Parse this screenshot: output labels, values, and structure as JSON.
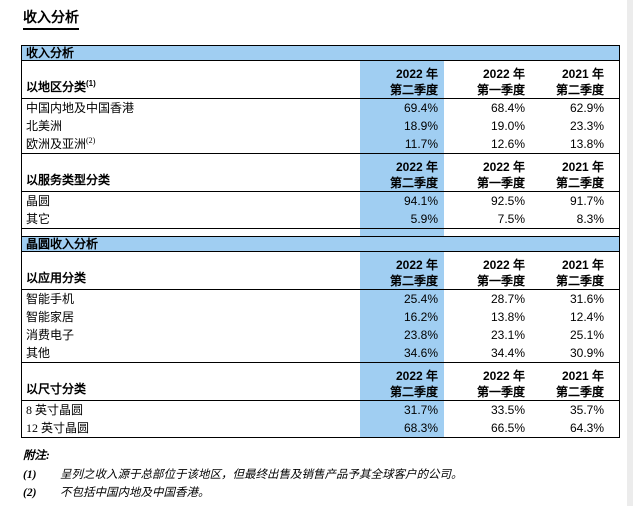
{
  "page_title": "收入分析",
  "colors": {
    "highlight_blue": "#a0cef2",
    "border_black": "#000000",
    "page_edge_gray": "#ececec"
  },
  "table": {
    "section_bars": {
      "revenue": "收入分析",
      "wafer": "晶圆收入分析"
    },
    "periods": [
      {
        "year": "2022 年",
        "quarter": "第二季度"
      },
      {
        "year": "2022 年",
        "quarter": "第一季度"
      },
      {
        "year": "2021 年",
        "quarter": "第二季度"
      }
    ],
    "groups": [
      {
        "label": "以地区分类",
        "sup": "(1)",
        "rows": [
          {
            "label": "中国内地及中国香港",
            "sup": "",
            "v1": "69.4%",
            "v2": "68.4%",
            "v3": "62.9%"
          },
          {
            "label": "北美洲",
            "sup": "",
            "v1": "18.9%",
            "v2": "19.0%",
            "v3": "23.3%"
          },
          {
            "label": "欧洲及亚洲",
            "sup": "(2)",
            "v1": "11.7%",
            "v2": "12.6%",
            "v3": "13.8%"
          }
        ]
      },
      {
        "label": "以服务类型分类",
        "sup": "",
        "rows": [
          {
            "label": "晶圆",
            "sup": "",
            "v1": "94.1%",
            "v2": "92.5%",
            "v3": "91.7%"
          },
          {
            "label": "其它",
            "sup": "",
            "v1": "5.9%",
            "v2": "7.5%",
            "v3": "8.3%"
          }
        ]
      },
      {
        "label": "以应用分类",
        "sup": "",
        "rows": [
          {
            "label": "智能手机",
            "sup": "",
            "v1": "25.4%",
            "v2": "28.7%",
            "v3": "31.6%"
          },
          {
            "label": "智能家居",
            "sup": "",
            "v1": "16.2%",
            "v2": "13.8%",
            "v3": "12.4%"
          },
          {
            "label": "消费电子",
            "sup": "",
            "v1": "23.8%",
            "v2": "23.1%",
            "v3": "25.1%"
          },
          {
            "label": "其他",
            "sup": "",
            "v1": "34.6%",
            "v2": "34.4%",
            "v3": "30.9%"
          }
        ]
      },
      {
        "label": "以尺寸分类",
        "sup": "",
        "rows": [
          {
            "label": "8 英寸晶圆",
            "sup": "",
            "v1": "31.7%",
            "v2": "33.5%",
            "v3": "35.7%"
          },
          {
            "label": "12 英寸晶圆",
            "sup": "",
            "v1": "68.3%",
            "v2": "66.5%",
            "v3": "64.3%"
          }
        ]
      }
    ]
  },
  "footnotes": {
    "title": "附注:",
    "items": [
      {
        "num": "(1)",
        "text": "呈列之收入源于总部位于该地区，但最终出售及销售产品予其全球客户的公司。"
      },
      {
        "num": "(2)",
        "text": "不包括中国内地及中国香港。"
      }
    ]
  }
}
